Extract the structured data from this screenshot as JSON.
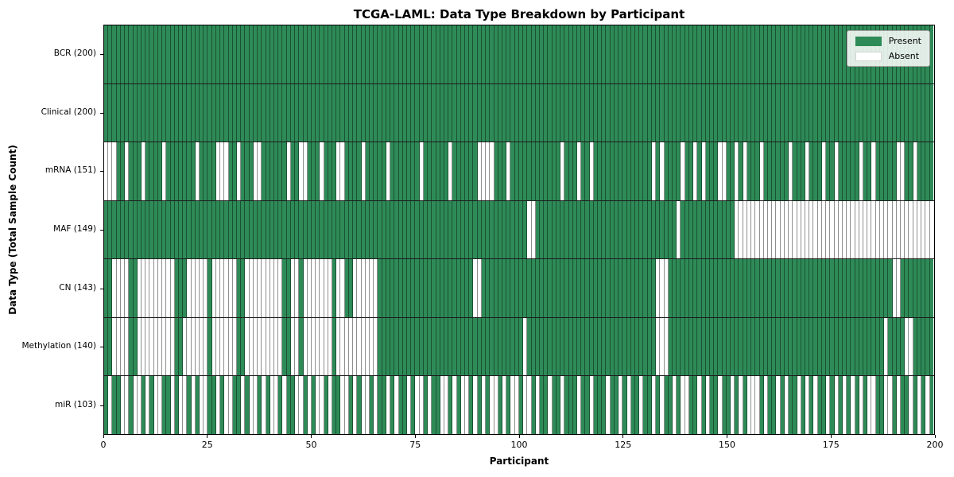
{
  "title": "TCGA-LAML: Data Type Breakdown by Participant",
  "axes": {
    "xlabel": "Participant",
    "ylabel": "Data Type (Total Sample Count)"
  },
  "legend": {
    "present_label": "Present",
    "absent_label": "Absent"
  },
  "colors": {
    "present": "#2e8b57",
    "absent": "#ffffff",
    "cell_edge": "#8f8f8f",
    "spine": "#000000"
  },
  "chart_data": {
    "type": "heatmap",
    "title": "TCGA-LAML: Data Type Breakdown by Participant",
    "xlabel": "Participant",
    "ylabel": "Data Type (Total Sample Count)",
    "x_range": [
      0,
      200
    ],
    "n_participants": 200,
    "x_ticks": [
      0,
      25,
      50,
      75,
      100,
      125,
      150,
      175,
      200
    ],
    "grid": false,
    "legend_position": "upper right",
    "legend_entries": [
      {
        "label": "Present",
        "color": "#2e8b57"
      },
      {
        "label": "Absent",
        "color": "#ffffff"
      }
    ],
    "value_encoding": {
      "1": "Present",
      "0": "Absent"
    },
    "rows": [
      {
        "data_type": "BCR",
        "label": "BCR (200)",
        "total_samples": 200,
        "presence": "11111111111111111111111111111111111111111111111111111111111111111111111111111111111111111111111111111111111111111111111111111111111111111111111111111111111111111111111111111111111111111111111111111111"
      },
      {
        "data_type": "Clinical",
        "label": "Clinical (200)",
        "total_samples": 200,
        "presence": "11111111111111111111111111111111111111111111111111111111111111111111111111111111111111111111111111111111111111111111111111111111111111111111111111111111111111111111111111111111111111111111111111111111"
      },
      {
        "data_type": "mRNA",
        "label": "mRNA (151)",
        "total_samples": 151,
        "presence": "00011011101111011111110111100011011100111111011001110111001111011111011111110111111011111100001110111111111111011101101111111111111101011110110101110011010111011111101110111011011111011011111001101111"
      },
      {
        "data_type": "MAF",
        "label": "MAF (149)",
        "total_samples": 149,
        "presence": "11111111111111111111111111111111111111111111111111111111111111111111111111111111111111111111111111111100111111111111111111111111111111111101111111111111000000000000000000000000000000000000000000000000"
      },
      {
        "data_type": "CN",
        "label": "CN (143)",
        "total_samples": 143,
        "presence": "11000011000000000111000001000000110000000001100100000001001100000011111111111111111111111001111111111111111111111111111111111111111110001111111111111111111111111111111111111111111111111111110011111111"
      },
      {
        "data_type": "Methylation",
        "label": "Methylation (140)",
        "total_samples": 140,
        "presence": "11000011000000000110000001000000110000000001100100000001000000000011111111111111111111111111111111111011111111111111111111111111111110001111111111111111111111111111111111111111111111111111011110011111"
      },
      {
        "data_type": "miR",
        "label": "miR (103)",
        "total_samples": 103,
        "presence": "10110010010100110100101001101001101001010010110010100101100101001011010110100101100101001010100101001001011011011101101110110101101101011010011010110110101000101101011010101101010101010011001011010101"
      }
    ]
  }
}
